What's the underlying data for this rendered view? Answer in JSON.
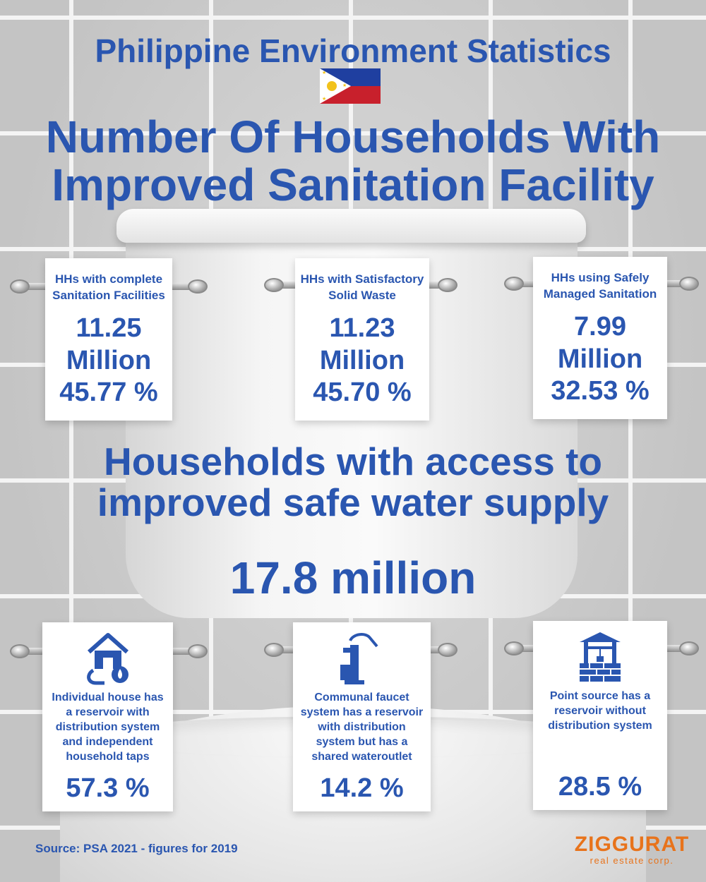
{
  "header": {
    "title": "Philippine Environment Statistics",
    "main_title_line1": "Number Of Households With",
    "main_title_line2": "Improved Sanitation Facility"
  },
  "sanitation_cards": [
    {
      "label_line1": "HHs with complete",
      "label_line2": "Sanitation Facilities",
      "value": "11.25",
      "unit": "Million",
      "percent": "45.77 %"
    },
    {
      "label_line1": "HHs with Satisfactory",
      "label_line2": "Solid Waste",
      "value": "11.23",
      "unit": "Million",
      "percent": "45.70 %"
    },
    {
      "label_line1": "HHs using Safely",
      "label_line2": "Managed Sanitation",
      "value": "7.99",
      "unit": "Million",
      "percent": "32.53 %"
    }
  ],
  "water": {
    "title_line1": "Households with access to",
    "title_line2": "improved safe water supply",
    "total": "17.8 million",
    "cards": [
      {
        "icon": "house-water-icon",
        "desc": [
          "Individual house has",
          "a reservoir with",
          "distribution system",
          "and independent",
          "household taps"
        ],
        "percent": "57.3 %"
      },
      {
        "icon": "faucet-pump-icon",
        "desc": [
          "Communal faucet",
          "system has a reservoir",
          "with distribution",
          "system but has a",
          "shared wateroutlet"
        ],
        "percent": "14.2 %"
      },
      {
        "icon": "well-icon",
        "desc": [
          "Point source has a",
          "reservoir without",
          "distribution system"
        ],
        "percent": "28.5 %"
      }
    ]
  },
  "footer": {
    "source": "Source: PSA 2021 - figures for 2019",
    "logo_brand": "ZIGGURAT",
    "logo_sub": "real estate corp."
  },
  "colors": {
    "accent": "#2a56b0",
    "brand": "#e8731b",
    "flag_blue": "#1f3fa0",
    "flag_red": "#c8202c",
    "flag_sun": "#f2c21b"
  }
}
